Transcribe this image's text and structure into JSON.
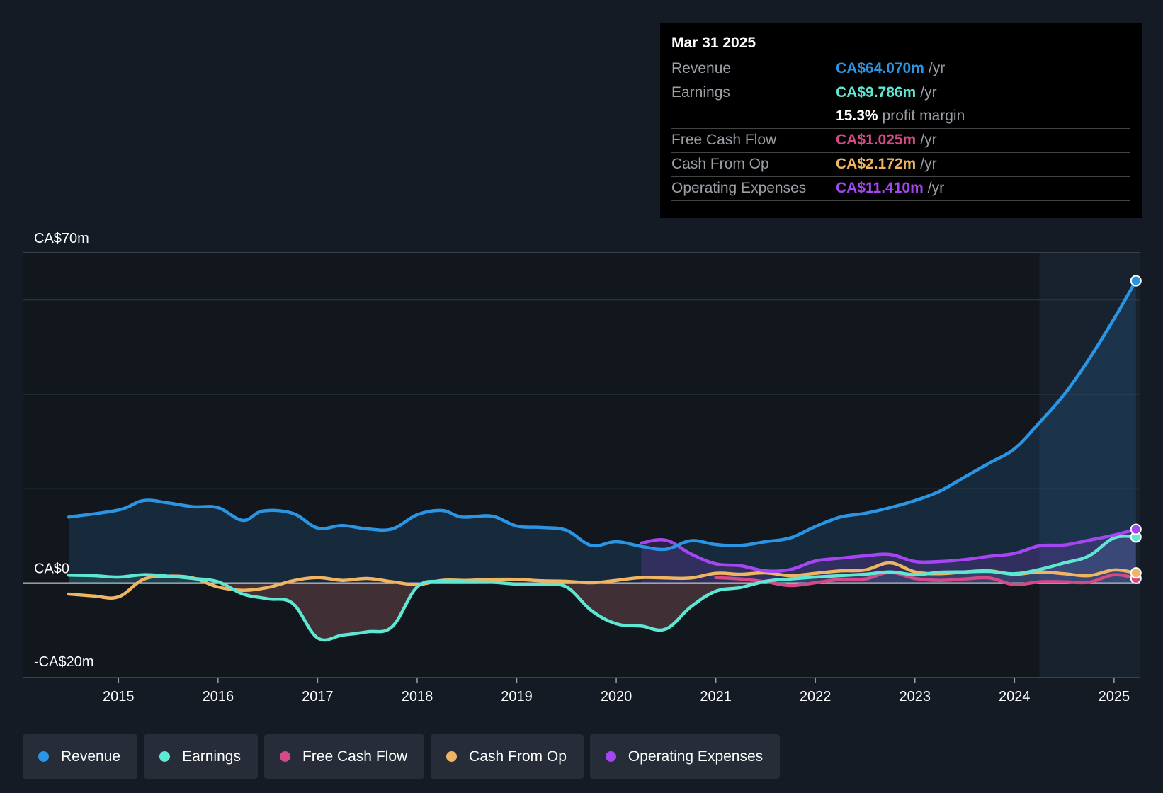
{
  "tooltip": {
    "date": "Mar 31 2025",
    "rows": [
      {
        "label": "Revenue",
        "value": "CA$64.070m",
        "unit": "/yr",
        "color": "#2b95e3"
      },
      {
        "label": "Earnings",
        "value": "CA$9.786m",
        "unit": "/yr",
        "color": "#5ee8d3"
      },
      {
        "label": "",
        "value": "15.3%",
        "unit": "profit margin",
        "color": "#ffffff"
      },
      {
        "label": "Free Cash Flow",
        "value": "CA$1.025m",
        "unit": "/yr",
        "color": "#d44a86"
      },
      {
        "label": "Cash From Op",
        "value": "CA$2.172m",
        "unit": "/yr",
        "color": "#f0b563"
      },
      {
        "label": "Operating Expenses",
        "value": "CA$11.410m",
        "unit": "/yr",
        "color": "#a546f2"
      }
    ]
  },
  "legend": [
    {
      "label": "Revenue",
      "color": "#2b95e3"
    },
    {
      "label": "Earnings",
      "color": "#5ee8d3"
    },
    {
      "label": "Free Cash Flow",
      "color": "#d44a86"
    },
    {
      "label": "Cash From Op",
      "color": "#f0b563"
    },
    {
      "label": "Operating Expenses",
      "color": "#a546f2"
    }
  ],
  "chart_data": {
    "type": "line",
    "y_tick_labels": [
      "CA$70m",
      "CA$0",
      "-CA$20m"
    ],
    "ylim": [
      -20,
      70
    ],
    "xlim": [
      2014.5,
      2025.25
    ],
    "x_ticks": [
      "2015",
      "2016",
      "2017",
      "2018",
      "2019",
      "2020",
      "2021",
      "2022",
      "2023",
      "2024",
      "2025"
    ],
    "past_data_start": 2024.25,
    "series": [
      {
        "name": "Revenue",
        "color": "#2b95e3",
        "points": [
          [
            2014.5,
            14
          ],
          [
            2015,
            15.5
          ],
          [
            2015.25,
            17.5
          ],
          [
            2015.5,
            17
          ],
          [
            2015.75,
            16.2
          ],
          [
            2016,
            16
          ],
          [
            2016.25,
            13.3
          ],
          [
            2016.45,
            15.3
          ],
          [
            2016.75,
            14.8
          ],
          [
            2017,
            11.7
          ],
          [
            2017.25,
            12.2
          ],
          [
            2017.5,
            11.5
          ],
          [
            2017.75,
            11.5
          ],
          [
            2018,
            14.5
          ],
          [
            2018.25,
            15.4
          ],
          [
            2018.45,
            14
          ],
          [
            2018.75,
            14.2
          ],
          [
            2019,
            12.1
          ],
          [
            2019.25,
            11.8
          ],
          [
            2019.5,
            11.2
          ],
          [
            2019.75,
            8
          ],
          [
            2020,
            8.8
          ],
          [
            2020.25,
            7.8
          ],
          [
            2020.5,
            7.2
          ],
          [
            2020.75,
            9
          ],
          [
            2021,
            8.2
          ],
          [
            2021.25,
            8
          ],
          [
            2021.5,
            8.8
          ],
          [
            2021.75,
            9.6
          ],
          [
            2022,
            12
          ],
          [
            2022.25,
            14
          ],
          [
            2022.5,
            14.8
          ],
          [
            2022.75,
            16
          ],
          [
            2023,
            17.5
          ],
          [
            2023.25,
            19.5
          ],
          [
            2023.5,
            22.5
          ],
          [
            2023.75,
            25.5
          ],
          [
            2024,
            28.5
          ],
          [
            2024.25,
            34
          ],
          [
            2024.5,
            40
          ],
          [
            2024.75,
            47.5
          ],
          [
            2025,
            56
          ],
          [
            2025.22,
            64.07
          ]
        ]
      },
      {
        "name": "Earnings",
        "color": "#5ee8d3",
        "points": [
          [
            2014.5,
            1.7
          ],
          [
            2014.75,
            1.6
          ],
          [
            2015,
            1.3
          ],
          [
            2015.25,
            1.8
          ],
          [
            2015.5,
            1.5
          ],
          [
            2015.75,
            1
          ],
          [
            2016,
            0.3
          ],
          [
            2016.25,
            -2.3
          ],
          [
            2016.5,
            -3.3
          ],
          [
            2016.75,
            -4.3
          ],
          [
            2017,
            -11.6
          ],
          [
            2017.25,
            -11
          ],
          [
            2017.5,
            -10.3
          ],
          [
            2017.75,
            -9.2
          ],
          [
            2018,
            -0.8
          ],
          [
            2018.25,
            0.4
          ],
          [
            2018.5,
            0.3
          ],
          [
            2018.75,
            0.2
          ],
          [
            2019,
            -0.2
          ],
          [
            2019.25,
            -0.3
          ],
          [
            2019.5,
            -0.8
          ],
          [
            2019.75,
            -5.8
          ],
          [
            2020,
            -8.6
          ],
          [
            2020.25,
            -9.1
          ],
          [
            2020.5,
            -9.7
          ],
          [
            2020.75,
            -5
          ],
          [
            2021,
            -1.7
          ],
          [
            2021.25,
            -0.9
          ],
          [
            2021.5,
            0.4
          ],
          [
            2021.75,
            0.9
          ],
          [
            2022,
            1.3
          ],
          [
            2022.5,
            1.9
          ],
          [
            2022.75,
            2.4
          ],
          [
            2023,
            1.8
          ],
          [
            2023.25,
            2.3
          ],
          [
            2023.5,
            2.4
          ],
          [
            2023.75,
            2.5
          ],
          [
            2024,
            2
          ],
          [
            2024.25,
            2.9
          ],
          [
            2024.5,
            4.3
          ],
          [
            2024.75,
            5.8
          ],
          [
            2025,
            9.6
          ],
          [
            2025.22,
            9.786
          ]
        ]
      },
      {
        "name": "Free Cash Flow",
        "color": "#d44a86",
        "points": [
          [
            2021,
            1.2
          ],
          [
            2021.25,
            0.9
          ],
          [
            2021.5,
            0.3
          ],
          [
            2021.75,
            -0.5
          ],
          [
            2022,
            0.1
          ],
          [
            2022.25,
            0.8
          ],
          [
            2022.5,
            0.9
          ],
          [
            2022.75,
            2.3
          ],
          [
            2023,
            1
          ],
          [
            2023.25,
            0.6
          ],
          [
            2023.5,
            0.9
          ],
          [
            2023.75,
            1.1
          ],
          [
            2024,
            -0.3
          ],
          [
            2024.25,
            0.3
          ],
          [
            2024.5,
            0.3
          ],
          [
            2024.75,
            0.2
          ],
          [
            2025,
            1.8
          ],
          [
            2025.22,
            1.025
          ]
        ]
      },
      {
        "name": "Cash From Op",
        "color": "#f0b563",
        "points": [
          [
            2014.5,
            -2.3
          ],
          [
            2014.75,
            -2.7
          ],
          [
            2015,
            -2.9
          ],
          [
            2015.25,
            0.8
          ],
          [
            2015.5,
            1.5
          ],
          [
            2015.75,
            1.1
          ],
          [
            2016,
            -0.8
          ],
          [
            2016.25,
            -1.5
          ],
          [
            2016.5,
            -0.9
          ],
          [
            2016.75,
            0.5
          ],
          [
            2017,
            1.2
          ],
          [
            2017.25,
            0.6
          ],
          [
            2017.5,
            1
          ],
          [
            2017.75,
            0.3
          ],
          [
            2018,
            -0.3
          ],
          [
            2018.25,
            0.6
          ],
          [
            2018.5,
            0.6
          ],
          [
            2018.75,
            0.8
          ],
          [
            2019,
            0.8
          ],
          [
            2019.25,
            0.5
          ],
          [
            2019.5,
            0.4
          ],
          [
            2019.75,
            0.1
          ],
          [
            2020,
            0.6
          ],
          [
            2020.25,
            1.2
          ],
          [
            2020.5,
            1.1
          ],
          [
            2020.75,
            1.1
          ],
          [
            2021,
            2.1
          ],
          [
            2021.25,
            1.9
          ],
          [
            2021.5,
            2.2
          ],
          [
            2021.75,
            1.6
          ],
          [
            2022,
            2.1
          ],
          [
            2022.25,
            2.6
          ],
          [
            2022.5,
            2.8
          ],
          [
            2022.75,
            4.3
          ],
          [
            2023,
            2.4
          ],
          [
            2023.25,
            2
          ],
          [
            2023.5,
            2.4
          ],
          [
            2023.75,
            2.6
          ],
          [
            2024,
            1.9
          ],
          [
            2024.25,
            2.4
          ],
          [
            2024.5,
            2
          ],
          [
            2024.75,
            1.6
          ],
          [
            2025,
            2.8
          ],
          [
            2025.22,
            2.172
          ]
        ]
      },
      {
        "name": "Operating Expenses",
        "color": "#a546f2",
        "points": [
          [
            2020.25,
            8.5
          ],
          [
            2020.5,
            9.1
          ],
          [
            2020.75,
            6.2
          ],
          [
            2021,
            4.1
          ],
          [
            2021.25,
            3.7
          ],
          [
            2021.5,
            2.6
          ],
          [
            2021.75,
            2.9
          ],
          [
            2022,
            4.7
          ],
          [
            2022.25,
            5.3
          ],
          [
            2022.5,
            5.8
          ],
          [
            2022.75,
            6.1
          ],
          [
            2023,
            4.6
          ],
          [
            2023.25,
            4.6
          ],
          [
            2023.5,
            5
          ],
          [
            2023.75,
            5.7
          ],
          [
            2024,
            6.3
          ],
          [
            2024.25,
            7.9
          ],
          [
            2024.5,
            8.1
          ],
          [
            2024.75,
            9.1
          ],
          [
            2025,
            10.2
          ],
          [
            2025.22,
            11.41
          ]
        ]
      }
    ]
  }
}
